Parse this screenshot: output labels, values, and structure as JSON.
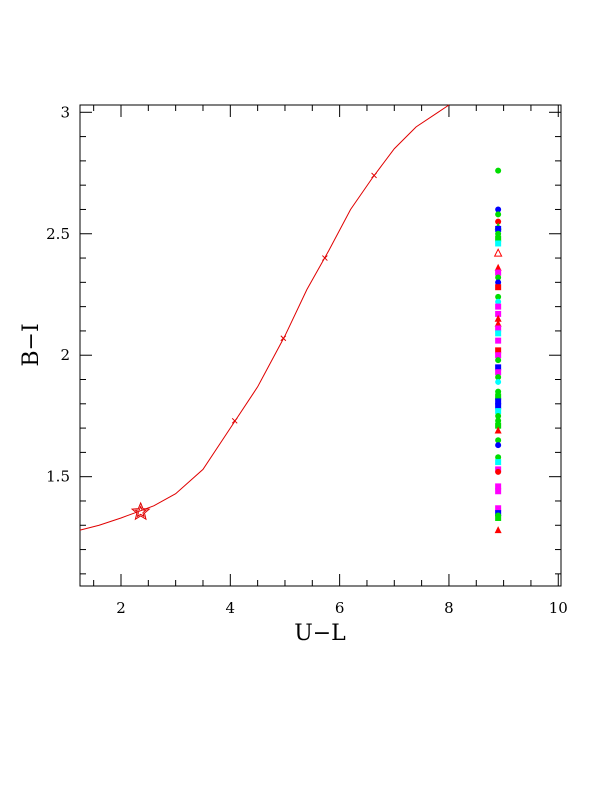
{
  "chart_data": {
    "type": "scatter",
    "title": "",
    "xlabel": "U−L",
    "ylabel": "B−I",
    "xlim": [
      1.25,
      10.05
    ],
    "ylim": [
      1.05,
      3.03
    ],
    "xticks": [
      2,
      4,
      6,
      8,
      10
    ],
    "xtick_labels": [
      "2",
      "4",
      "6",
      "8",
      "10"
    ],
    "yticks": [
      1.5,
      2,
      2.5,
      3
    ],
    "ytick_labels": [
      "1.5",
      "2",
      "2.5",
      "3"
    ],
    "x_minor_step": 0.5,
    "y_minor_step": 0.1,
    "grid": false,
    "colors": {
      "curve": "#e00000",
      "red": "#ff0000",
      "green": "#00dd00",
      "blue": "#0000ff",
      "magenta": "#ff00ff",
      "cyan": "#00ffff"
    },
    "curve": {
      "x": [
        1.25,
        1.6,
        2.0,
        2.3,
        2.6,
        3.0,
        3.5,
        4.0,
        4.5,
        5.0,
        5.4,
        5.8,
        6.2,
        6.6,
        7.0,
        7.4,
        7.8,
        8.0
      ],
      "y": [
        1.28,
        1.3,
        1.33,
        1.355,
        1.38,
        1.43,
        1.53,
        1.7,
        1.87,
        2.08,
        2.27,
        2.43,
        2.6,
        2.73,
        2.85,
        2.94,
        3.0,
        3.03
      ]
    },
    "curve_markers": {
      "x": [
        4.08,
        4.97,
        5.73,
        6.63
      ],
      "y": [
        1.73,
        2.07,
        2.4,
        2.74
      ]
    },
    "star_marker": {
      "x": 2.36,
      "y": 1.355
    },
    "column_x": 8.9,
    "column_points": [
      {
        "y": 2.76,
        "color": "green",
        "shape": "circle"
      },
      {
        "y": 2.6,
        "color": "blue",
        "shape": "circle"
      },
      {
        "y": 2.58,
        "color": "green",
        "shape": "circle"
      },
      {
        "y": 2.55,
        "color": "red",
        "shape": "circle"
      },
      {
        "y": 2.53,
        "color": "green",
        "shape": "triangle"
      },
      {
        "y": 2.52,
        "color": "blue",
        "shape": "square"
      },
      {
        "y": 2.5,
        "color": "green",
        "shape": "circle"
      },
      {
        "y": 2.48,
        "color": "green",
        "shape": "square"
      },
      {
        "y": 2.46,
        "color": "cyan",
        "shape": "square"
      },
      {
        "y": 2.42,
        "color": "red",
        "shape": "triangle-open"
      },
      {
        "y": 2.36,
        "color": "red",
        "shape": "triangle"
      },
      {
        "y": 2.34,
        "color": "magenta",
        "shape": "square"
      },
      {
        "y": 2.32,
        "color": "green",
        "shape": "circle"
      },
      {
        "y": 2.3,
        "color": "blue",
        "shape": "circle"
      },
      {
        "y": 2.28,
        "color": "red",
        "shape": "square"
      },
      {
        "y": 2.24,
        "color": "green",
        "shape": "circle"
      },
      {
        "y": 2.22,
        "color": "cyan",
        "shape": "circle"
      },
      {
        "y": 2.2,
        "color": "magenta",
        "shape": "square"
      },
      {
        "y": 2.17,
        "color": "magenta",
        "shape": "square"
      },
      {
        "y": 2.15,
        "color": "red",
        "shape": "triangle"
      },
      {
        "y": 2.13,
        "color": "red",
        "shape": "triangle"
      },
      {
        "y": 2.11,
        "color": "magenta",
        "shape": "square"
      },
      {
        "y": 2.09,
        "color": "cyan",
        "shape": "square"
      },
      {
        "y": 2.06,
        "color": "magenta",
        "shape": "square"
      },
      {
        "y": 2.02,
        "color": "red",
        "shape": "square"
      },
      {
        "y": 2.0,
        "color": "magenta",
        "shape": "square"
      },
      {
        "y": 1.98,
        "color": "green",
        "shape": "circle"
      },
      {
        "y": 1.95,
        "color": "blue",
        "shape": "square"
      },
      {
        "y": 1.93,
        "color": "magenta",
        "shape": "square"
      },
      {
        "y": 1.91,
        "color": "green",
        "shape": "circle"
      },
      {
        "y": 1.89,
        "color": "cyan",
        "shape": "circle"
      },
      {
        "y": 1.85,
        "color": "green",
        "shape": "circle"
      },
      {
        "y": 1.83,
        "color": "green",
        "shape": "square"
      },
      {
        "y": 1.81,
        "color": "blue",
        "shape": "square"
      },
      {
        "y": 1.79,
        "color": "blue",
        "shape": "square"
      },
      {
        "y": 1.77,
        "color": "cyan",
        "shape": "square"
      },
      {
        "y": 1.75,
        "color": "green",
        "shape": "circle"
      },
      {
        "y": 1.73,
        "color": "green",
        "shape": "circle"
      },
      {
        "y": 1.71,
        "color": "green",
        "shape": "square"
      },
      {
        "y": 1.69,
        "color": "red",
        "shape": "triangle"
      },
      {
        "y": 1.65,
        "color": "green",
        "shape": "circle"
      },
      {
        "y": 1.63,
        "color": "blue",
        "shape": "circle"
      },
      {
        "y": 1.58,
        "color": "green",
        "shape": "circle"
      },
      {
        "y": 1.56,
        "color": "cyan",
        "shape": "square"
      },
      {
        "y": 1.53,
        "color": "magenta",
        "shape": "square"
      },
      {
        "y": 1.52,
        "color": "red",
        "shape": "circle"
      },
      {
        "y": 1.46,
        "color": "magenta",
        "shape": "square"
      },
      {
        "y": 1.44,
        "color": "magenta",
        "shape": "square"
      },
      {
        "y": 1.37,
        "color": "magenta",
        "shape": "square"
      },
      {
        "y": 1.35,
        "color": "blue",
        "shape": "square"
      },
      {
        "y": 1.34,
        "color": "green",
        "shape": "circle"
      },
      {
        "y": 1.33,
        "color": "green",
        "shape": "square"
      },
      {
        "y": 1.28,
        "color": "red",
        "shape": "triangle"
      }
    ]
  }
}
